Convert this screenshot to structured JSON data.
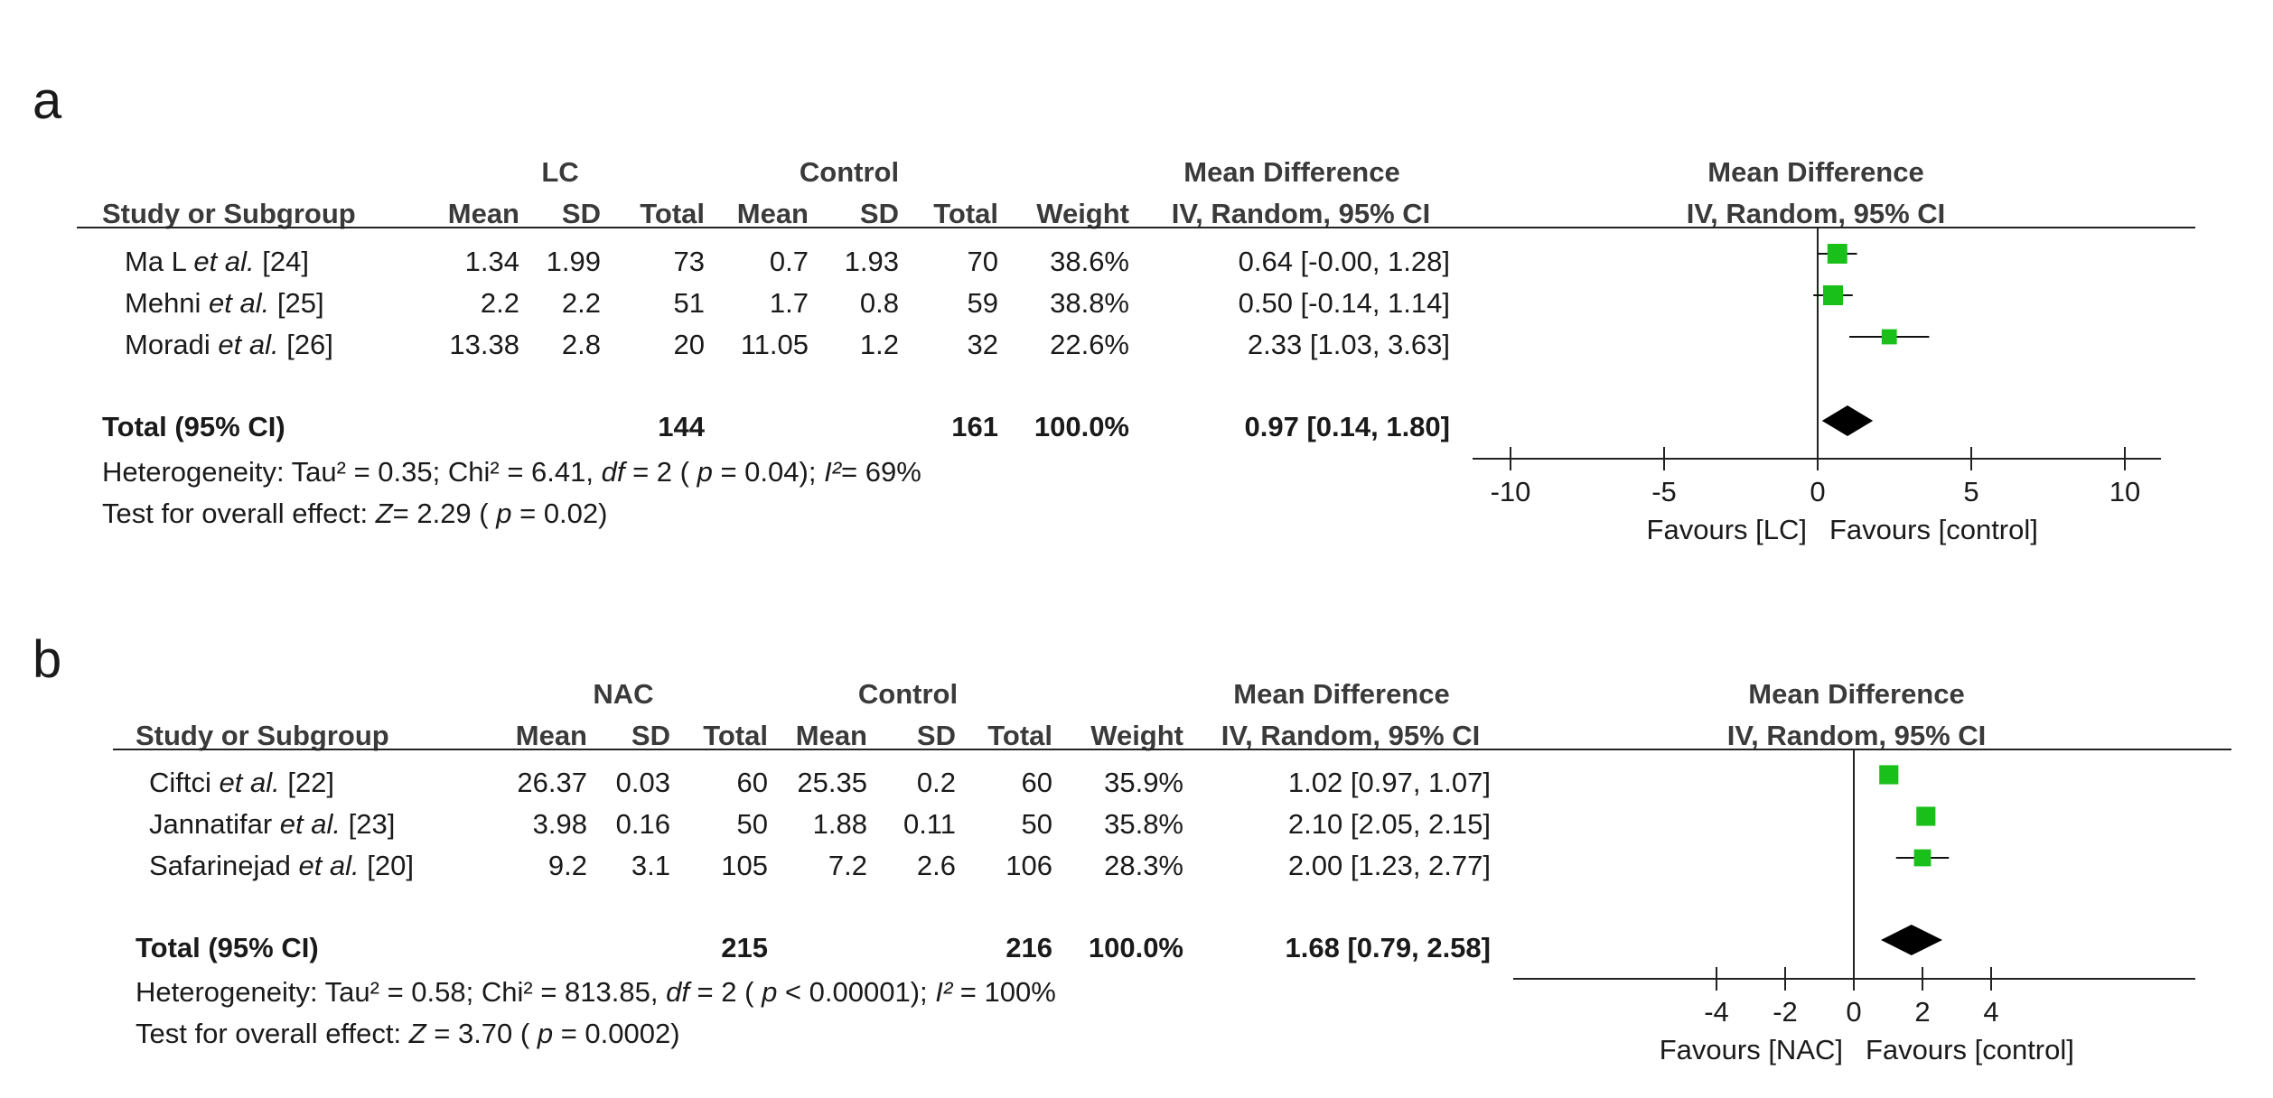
{
  "panels": [
    {
      "label": "a",
      "group1": "LC",
      "group2": "Control",
      "effect_header_1": "Mean Difference",
      "effect_header_2": "IV, Random, 95% CI",
      "plot_header_1": "Mean Difference",
      "plot_header_2": "IV, Random, 95% CI",
      "columns": [
        "Study or Subgroup",
        "Mean",
        "SD",
        "Total",
        "Mean",
        "SD",
        "Total",
        "Weight"
      ],
      "studies": [
        {
          "name": "Ma L ",
          "etal": "et al.",
          "ref": " [24]",
          "m1": "1.34",
          "sd1": "1.99",
          "n1": "73",
          "m2": "0.7",
          "sd2": "1.93",
          "n2": "70",
          "weight": "38.6%",
          "ci": "0.64 [-0.00, 1.28]"
        },
        {
          "name": "Mehni ",
          "etal": "et al.",
          "ref": " [25]",
          "m1": "2.2",
          "sd1": "2.2",
          "n1": "51",
          "m2": "1.7",
          "sd2": "0.8",
          "n2": "59",
          "weight": "38.8%",
          "ci": "0.50 [-0.14, 1.14]"
        },
        {
          "name": "Moradi ",
          "etal": "et al.",
          "ref": " [26]",
          "m1": "13.38",
          "sd1": "2.8",
          "n1": "20",
          "m2": "11.05",
          "sd2": "1.2",
          "n2": "32",
          "weight": "22.6%",
          "ci": "2.33 [1.03, 3.63]"
        }
      ],
      "total": {
        "label": "Total (95% CI)",
        "n1": "144",
        "n2": "161",
        "weight": "100.0%",
        "ci": "0.97 [0.14, 1.80]"
      },
      "heterogeneity": {
        "prefix": "Heterogeneity: Tau² = 0.35; Chi² = 6.41,  ",
        "df": "df",
        "mid": " = 2 ( ",
        "p": "p",
        "pval": " = 0.04);  ",
        "i2": "I²",
        "i2val": "= 69%"
      },
      "overall": {
        "prefix": "Test for overall effect:  ",
        "z": "Z",
        "zval": "= 2.29 ( ",
        "p": "p",
        "pval": " = 0.02)"
      },
      "favours_left": "Favours [LC]",
      "favours_right": "Favours [control]"
    },
    {
      "label": "b",
      "group1": "NAC",
      "group2": "Control",
      "effect_header_1": "Mean Difference",
      "effect_header_2": "IV, Random, 95% CI",
      "plot_header_1": "Mean Difference",
      "plot_header_2": "IV, Random, 95% CI",
      "columns": [
        "Study or Subgroup",
        "Mean",
        "SD",
        "Total",
        "Mean",
        "SD",
        "Total",
        "Weight"
      ],
      "studies": [
        {
          "name": "Ciftci ",
          "etal": "et al.",
          "ref": "  [22]",
          "m1": "26.37",
          "sd1": "0.03",
          "n1": "60",
          "m2": "25.35",
          "sd2": "0.2",
          "n2": "60",
          "weight": "35.9%",
          "ci": "1.02 [0.97, 1.07]"
        },
        {
          "name": "Jannatifar ",
          "etal": "et al.",
          "ref": " [23]",
          "m1": "3.98",
          "sd1": "0.16",
          "n1": "50",
          "m2": "1.88",
          "sd2": "0.11",
          "n2": "50",
          "weight": "35.8%",
          "ci": "2.10 [2.05, 2.15]"
        },
        {
          "name": "Safarinejad ",
          "etal": "et al.",
          "ref": " [20]",
          "m1": "9.2",
          "sd1": "3.1",
          "n1": "105",
          "m2": "7.2",
          "sd2": "2.6",
          "n2": "106",
          "weight": "28.3%",
          "ci": "2.00 [1.23, 2.77]"
        }
      ],
      "total": {
        "label": "Total (95% CI)",
        "n1": "215",
        "n2": "216",
        "weight": "100.0%",
        "ci": "1.68 [0.79, 2.58]"
      },
      "heterogeneity": {
        "prefix": "Heterogeneity: Tau² = 0.58; Chi² = 813.85,  ",
        "df": "df",
        "mid": " = 2 ( ",
        "p": "p",
        "pval": " < 0.00001);  ",
        "i2": "I²",
        "i2val": " = 100%"
      },
      "overall": {
        "prefix": "Test for overall effect:  ",
        "z": "Z",
        "zval": " = 3.70 ( ",
        "p": "p",
        "pval": " = 0.0002)"
      },
      "favours_left": "Favours [NAC]",
      "favours_right": "Favours [control]"
    }
  ],
  "chart_data": [
    {
      "type": "scatter",
      "subtype": "forest",
      "panel": "a",
      "x_ticks": [
        -10,
        -5,
        0,
        5,
        10
      ],
      "xlim": [
        -11,
        11
      ],
      "studies": [
        {
          "name": "Ma L et al. [24]",
          "md": 0.64,
          "lo": 0.0,
          "hi": 1.28,
          "weight": 38.6
        },
        {
          "name": "Mehni et al. [25]",
          "md": 0.5,
          "lo": -0.14,
          "hi": 1.14,
          "weight": 38.8
        },
        {
          "name": "Moradi et al. [26]",
          "md": 2.33,
          "lo": 1.03,
          "hi": 3.63,
          "weight": 22.6
        }
      ],
      "total": {
        "md": 0.97,
        "lo": 0.14,
        "hi": 1.8
      },
      "marker_color": "#19c019"
    },
    {
      "type": "scatter",
      "subtype": "forest",
      "panel": "b",
      "x_ticks": [
        -4,
        -2,
        0,
        2,
        4
      ],
      "xlim": [
        -10.5,
        10.5
      ],
      "studies": [
        {
          "name": "Ciftci et al. [22]",
          "md": 1.02,
          "lo": 0.97,
          "hi": 1.07,
          "weight": 35.9
        },
        {
          "name": "Jannatifar et al. [23]",
          "md": 2.1,
          "lo": 2.05,
          "hi": 2.15,
          "weight": 35.8
        },
        {
          "name": "Safarinejad et al. [20]",
          "md": 2.0,
          "lo": 1.23,
          "hi": 2.77,
          "weight": 28.3
        }
      ],
      "total": {
        "md": 1.68,
        "lo": 0.79,
        "hi": 2.58
      },
      "marker_color": "#19c019"
    }
  ]
}
